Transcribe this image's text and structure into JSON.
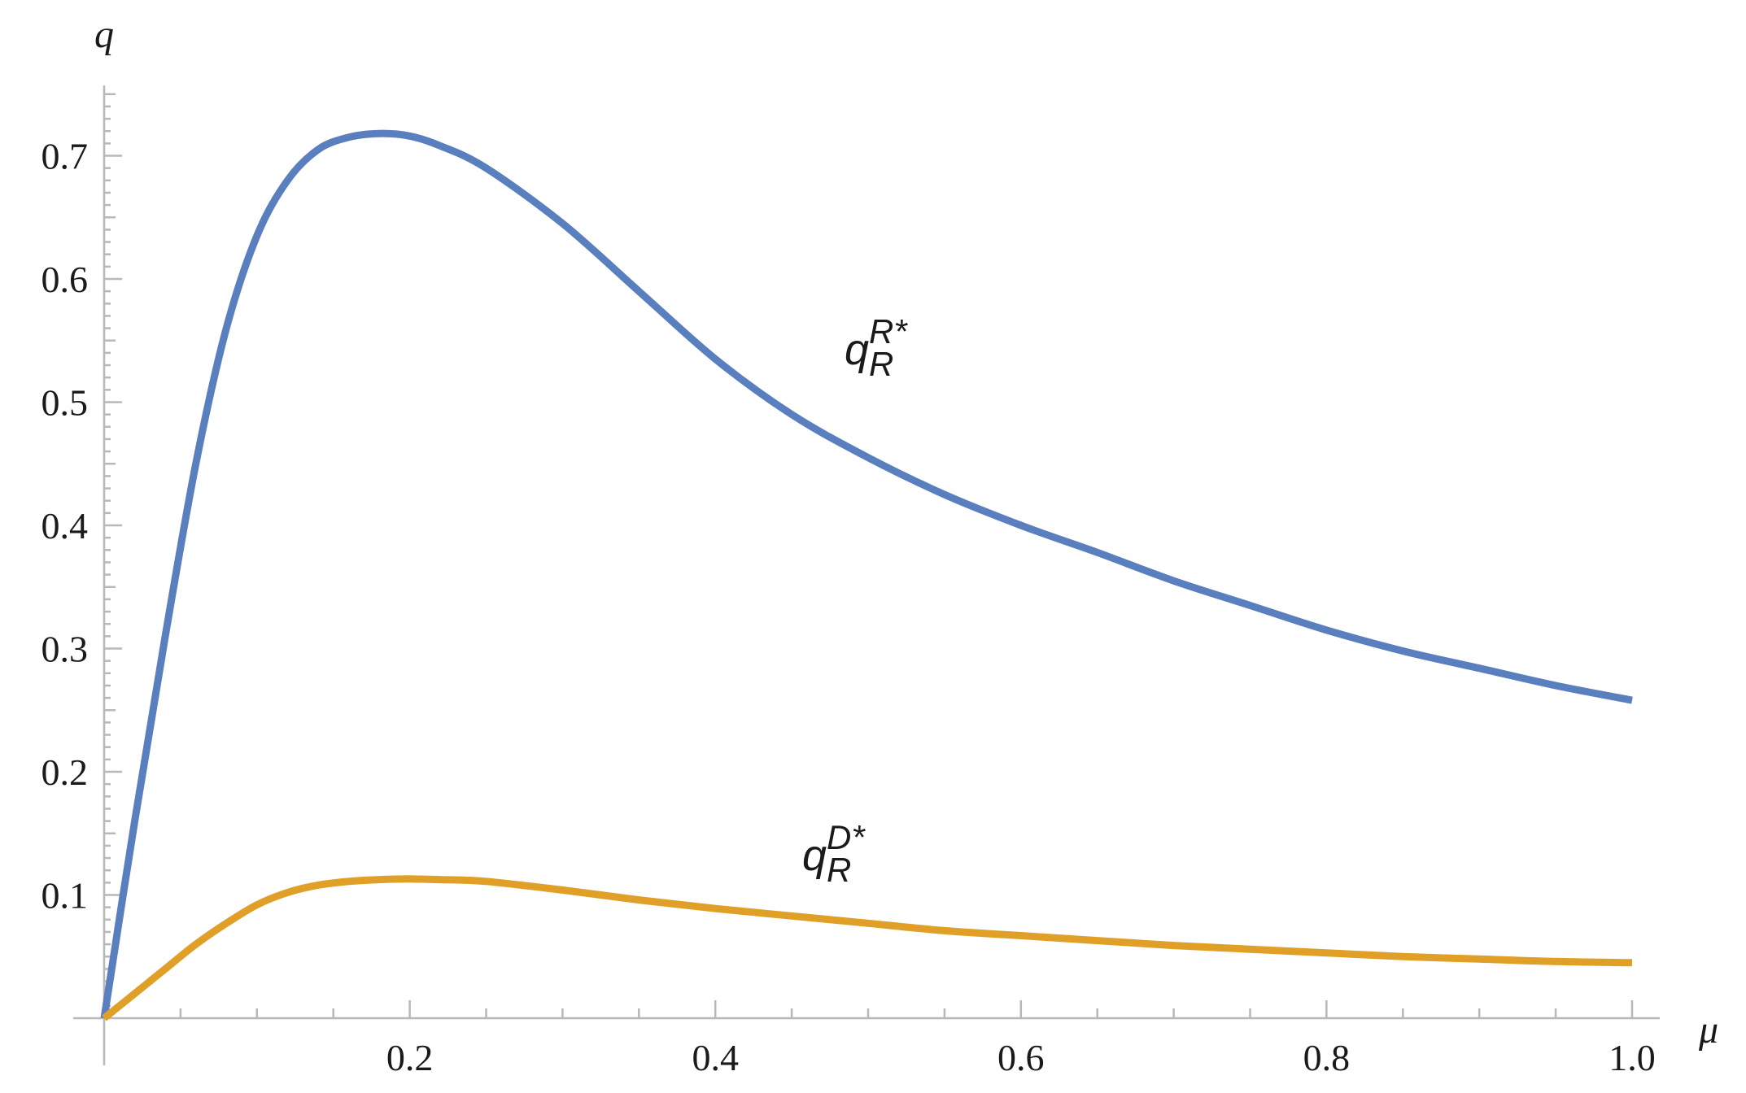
{
  "chart_data": {
    "type": "line",
    "xlabel": "μ",
    "ylabel": "q",
    "xlim": [
      0,
      1.0
    ],
    "ylim": [
      0,
      0.75
    ],
    "x_ticks": [
      0.2,
      0.4,
      0.6,
      0.8,
      1.0
    ],
    "x_tick_labels": [
      "0.2",
      "0.4",
      "0.6",
      "0.8",
      "1.0"
    ],
    "y_ticks": [
      0.1,
      0.2,
      0.3,
      0.4,
      0.5,
      0.6,
      0.7
    ],
    "y_tick_labels": [
      "0.1",
      "0.2",
      "0.3",
      "0.4",
      "0.5",
      "0.6",
      "0.7"
    ],
    "grid": false,
    "legend": "none",
    "series": [
      {
        "name": "q_R^{R*}",
        "label_main": "q",
        "label_sub": "R",
        "label_sup": "R*",
        "color": "#5a7fbf",
        "x": [
          0,
          0.02,
          0.04,
          0.06,
          0.08,
          0.1,
          0.12,
          0.14,
          0.16,
          0.18,
          0.2,
          0.22,
          0.25,
          0.3,
          0.35,
          0.4,
          0.45,
          0.5,
          0.55,
          0.6,
          0.65,
          0.7,
          0.75,
          0.8,
          0.85,
          0.9,
          0.95,
          1.0
        ],
        "y": [
          0,
          0.16,
          0.31,
          0.45,
          0.56,
          0.635,
          0.68,
          0.705,
          0.715,
          0.718,
          0.716,
          0.708,
          0.69,
          0.645,
          0.59,
          0.535,
          0.49,
          0.455,
          0.425,
          0.4,
          0.378,
          0.355,
          0.335,
          0.315,
          0.298,
          0.284,
          0.27,
          0.258
        ]
      },
      {
        "name": "q_R^{D*}",
        "label_main": "q",
        "label_sub": "R",
        "label_sup": "D*",
        "color": "#e0a028",
        "x": [
          0,
          0.02,
          0.04,
          0.06,
          0.08,
          0.1,
          0.12,
          0.14,
          0.16,
          0.18,
          0.2,
          0.22,
          0.25,
          0.3,
          0.35,
          0.4,
          0.45,
          0.5,
          0.55,
          0.6,
          0.65,
          0.7,
          0.75,
          0.8,
          0.85,
          0.9,
          0.95,
          1.0
        ],
        "y": [
          0,
          0.02,
          0.04,
          0.06,
          0.077,
          0.092,
          0.102,
          0.108,
          0.111,
          0.1125,
          0.113,
          0.1125,
          0.111,
          0.104,
          0.096,
          0.089,
          0.083,
          0.077,
          0.071,
          0.067,
          0.063,
          0.059,
          0.056,
          0.053,
          0.05,
          0.048,
          0.046,
          0.045
        ]
      }
    ]
  }
}
